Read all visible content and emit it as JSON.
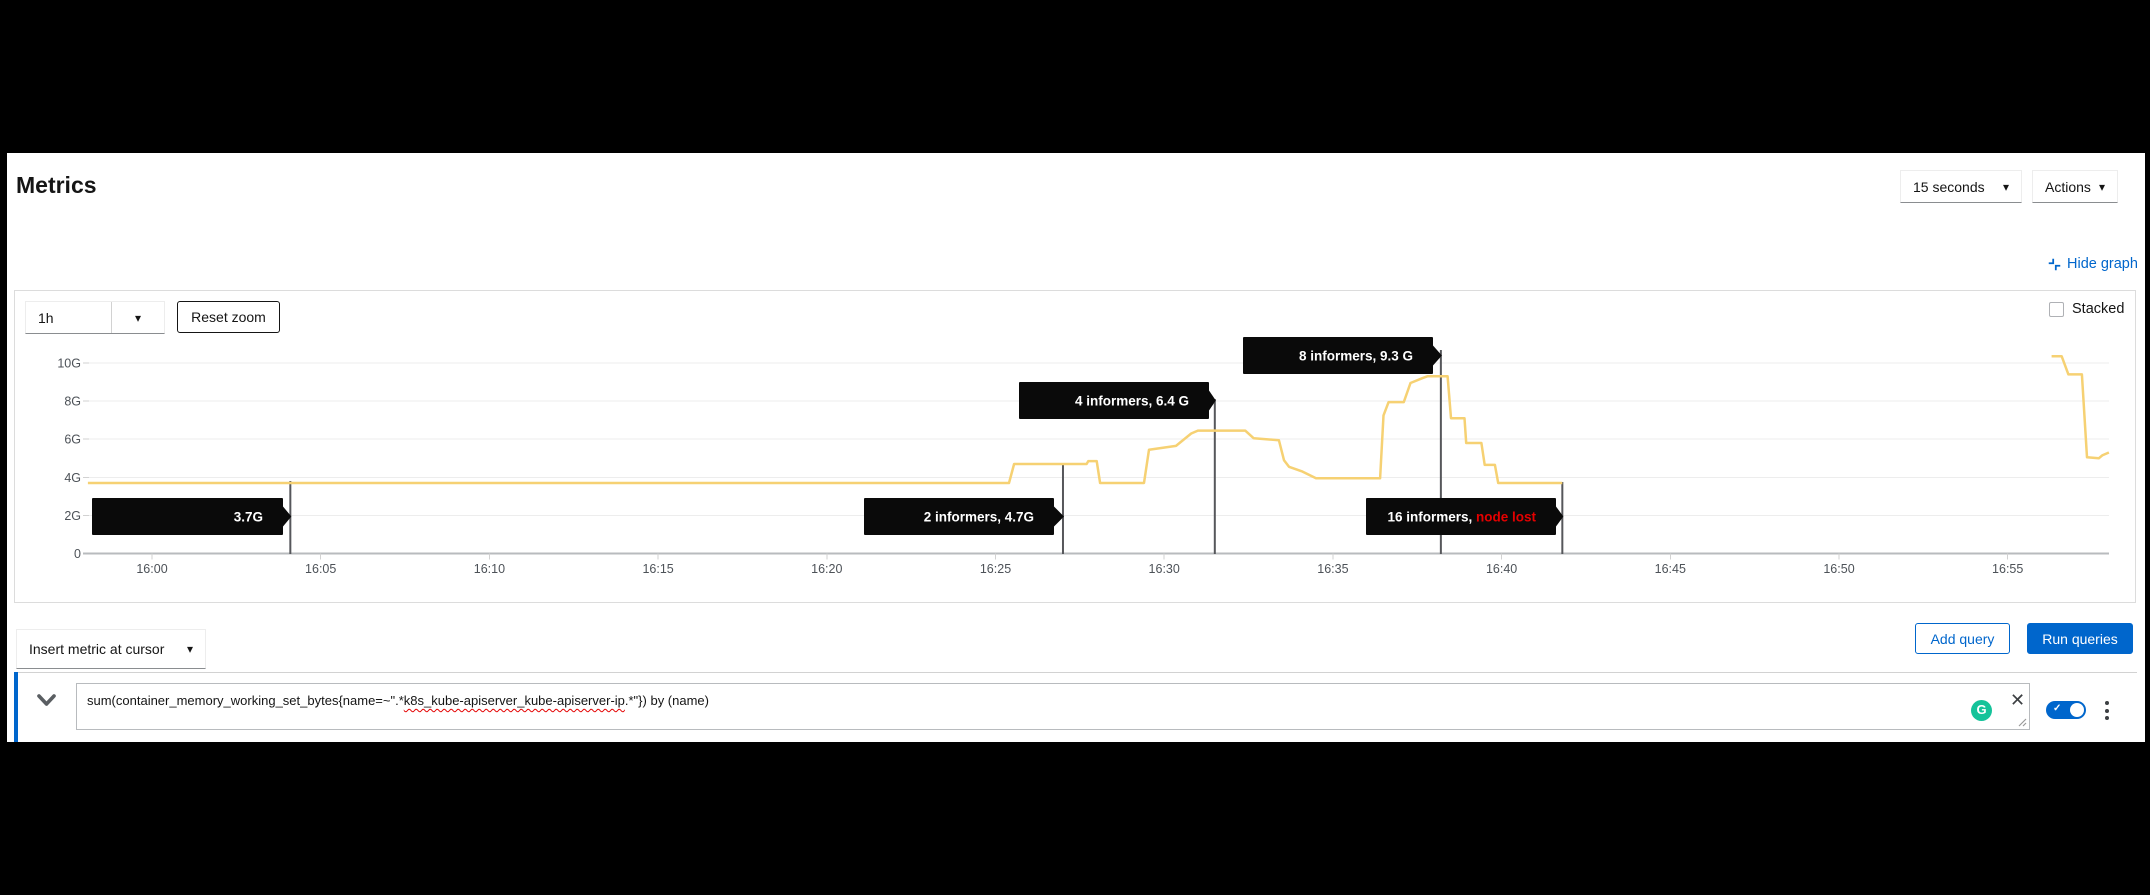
{
  "page": {
    "title": "Metrics"
  },
  "toolbar": {
    "poll_interval": "15 seconds",
    "actions": "Actions"
  },
  "graph_controls": {
    "hide_graph": "Hide graph",
    "timespan": "1h",
    "reset_zoom": "Reset zoom",
    "stacked": "Stacked"
  },
  "chart_data": {
    "type": "line",
    "title": "",
    "xlabel": "",
    "ylabel": "",
    "grid": true,
    "legend": "none",
    "x_axis": {
      "tick_labels": [
        "16:00",
        "16:05",
        "16:10",
        "16:15",
        "16:20",
        "16:25",
        "16:30",
        "16:35",
        "16:40",
        "16:45",
        "16:50",
        "16:55"
      ]
    },
    "y_axis": {
      "tick_labels": [
        "0",
        "2G",
        "4G",
        "6G",
        "8G",
        "10G"
      ],
      "tick_values": [
        0,
        2,
        4,
        6,
        8,
        10
      ],
      "max": 10.5,
      "unit": "G"
    },
    "series": [
      {
        "name": "sum(container_memory_working_set_bytes{name=~\".*k8s_kube-apiserver_kube-apiserver-ip.*\"}) by (name)",
        "color": "#f6d173",
        "unit": "G",
        "x_unit": "minutes after 16:00",
        "points": [
          [
            -1.9,
            3.7
          ],
          [
            25.4,
            3.7
          ],
          [
            25.55,
            4.7
          ],
          [
            27.7,
            4.7
          ],
          [
            27.75,
            4.85
          ],
          [
            28.0,
            4.85
          ],
          [
            28.1,
            3.7
          ],
          [
            29.4,
            3.7
          ],
          [
            29.55,
            5.45
          ],
          [
            30.35,
            5.65
          ],
          [
            30.8,
            6.3
          ],
          [
            31.0,
            6.45
          ],
          [
            32.4,
            6.45
          ],
          [
            32.65,
            6.05
          ],
          [
            33.4,
            5.95
          ],
          [
            33.55,
            4.9
          ],
          [
            33.7,
            4.55
          ],
          [
            34.1,
            4.3
          ],
          [
            34.5,
            3.95
          ],
          [
            36.4,
            3.95
          ],
          [
            36.5,
            7.25
          ],
          [
            36.65,
            7.95
          ],
          [
            37.1,
            7.95
          ],
          [
            37.3,
            8.95
          ],
          [
            37.65,
            9.2
          ],
          [
            37.8,
            9.3
          ],
          [
            38.4,
            9.3
          ],
          [
            38.5,
            7.1
          ],
          [
            38.9,
            7.1
          ],
          [
            38.95,
            5.8
          ],
          [
            39.4,
            5.8
          ],
          [
            39.5,
            4.65
          ],
          [
            39.8,
            4.65
          ],
          [
            39.9,
            3.7
          ],
          [
            41.8,
            3.7
          ],
          null,
          [
            56.3,
            10.35
          ],
          [
            56.6,
            10.35
          ],
          [
            56.8,
            9.4
          ],
          [
            57.2,
            9.4
          ],
          [
            57.35,
            5.05
          ],
          [
            57.7,
            5.0
          ],
          [
            57.8,
            5.15
          ],
          [
            58.0,
            5.3
          ]
        ]
      }
    ],
    "annotations": [
      {
        "label": "3.7G",
        "accent": "",
        "at_minute": 4.1
      },
      {
        "label": "2 informers, 4.7G",
        "accent": "",
        "at_minute": 27.0
      },
      {
        "label": "4 informers, 6.4 G",
        "accent": "",
        "at_minute": 31.5
      },
      {
        "label": "8 informers, 9.3 G",
        "accent": "",
        "at_minute": 38.2
      },
      {
        "label": "16 informers, ",
        "accent": "node lost",
        "at_minute": 41.8
      }
    ],
    "annotation_style": {
      "bg": "#0a0a0a",
      "text": "#ffffff",
      "accent_color": "#e40000",
      "marker_color": "#56575b"
    }
  },
  "query_bar": {
    "insert_metric": "Insert metric at cursor",
    "add_query": "Add query",
    "run_queries": "Run queries"
  },
  "query": {
    "prefix": "sum(container_memory_working_set_bytes{name=~\".*",
    "flagged": "k8s_kube-apiserver_kube-apiserver-ip",
    "suffix": ".*\"}) by (name)"
  },
  "icons": {
    "switch_check": "✓",
    "grammarly_letter": "G",
    "close": "✕",
    "caret": "▾"
  },
  "colors": {
    "accent_blue": "#0066cc",
    "line_gold": "#f6d173",
    "grid": "#ededed",
    "axis": "#b8bbbe",
    "annotation_bg": "#0a0a0a",
    "annotation_red": "#e40000",
    "grammarly_green": "#15c39a"
  }
}
